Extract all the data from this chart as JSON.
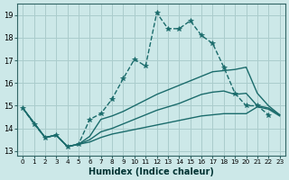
{
  "xlabel": "Humidex (Indice chaleur)",
  "bg_color": "#cce8e8",
  "grid_color": "#aacccc",
  "line_color": "#1a6b6b",
  "xlim": [
    -0.5,
    23.5
  ],
  "ylim": [
    12.8,
    19.5
  ],
  "xticks": [
    0,
    1,
    2,
    3,
    4,
    5,
    6,
    7,
    8,
    9,
    10,
    11,
    12,
    13,
    14,
    15,
    16,
    17,
    18,
    19,
    20,
    21,
    22,
    23
  ],
  "yticks": [
    13,
    14,
    15,
    16,
    17,
    18,
    19
  ],
  "series": [
    {
      "x": [
        0,
        1,
        2,
        3,
        4,
        5,
        6,
        7,
        8,
        9,
        10,
        11,
        12,
        13,
        14,
        15,
        16,
        17,
        18,
        19,
        20,
        21,
        22
      ],
      "y": [
        14.9,
        14.2,
        13.6,
        13.7,
        13.2,
        13.3,
        14.4,
        14.65,
        15.3,
        16.2,
        17.05,
        16.75,
        19.1,
        18.4,
        18.4,
        18.75,
        18.1,
        17.75,
        16.7,
        15.55,
        15.0,
        15.0,
        14.6
      ],
      "marker": "*",
      "markersize": 4,
      "ls": "--",
      "lw": 1.0
    },
    {
      "x": [
        0,
        2,
        3,
        4,
        5,
        6,
        7,
        8,
        9,
        10,
        11,
        12,
        13,
        14,
        15,
        16,
        17,
        18,
        19,
        20,
        21,
        22,
        23
      ],
      "y": [
        14.9,
        13.6,
        13.7,
        13.2,
        13.3,
        13.65,
        14.4,
        14.55,
        14.75,
        15.0,
        15.25,
        15.5,
        15.7,
        15.9,
        16.1,
        16.3,
        16.5,
        16.55,
        16.6,
        16.7,
        15.55,
        15.0,
        14.6
      ],
      "marker": null,
      "markersize": 0,
      "ls": "-",
      "lw": 1.0
    },
    {
      "x": [
        0,
        2,
        3,
        4,
        5,
        6,
        7,
        8,
        9,
        10,
        11,
        12,
        13,
        14,
        15,
        16,
        17,
        18,
        19,
        20,
        21,
        22,
        23
      ],
      "y": [
        14.9,
        13.6,
        13.7,
        13.2,
        13.3,
        13.5,
        13.85,
        14.0,
        14.2,
        14.4,
        14.6,
        14.8,
        14.95,
        15.1,
        15.3,
        15.5,
        15.6,
        15.65,
        15.5,
        15.55,
        15.0,
        14.9,
        14.6
      ],
      "marker": null,
      "markersize": 0,
      "ls": "-",
      "lw": 1.0
    },
    {
      "x": [
        0,
        2,
        3,
        4,
        5,
        6,
        7,
        8,
        9,
        10,
        11,
        12,
        13,
        14,
        15,
        16,
        17,
        18,
        19,
        20,
        21,
        22,
        23
      ],
      "y": [
        14.9,
        13.6,
        13.7,
        13.2,
        13.3,
        13.4,
        13.6,
        13.75,
        13.85,
        13.95,
        14.05,
        14.15,
        14.25,
        14.35,
        14.45,
        14.55,
        14.6,
        14.65,
        14.65,
        14.65,
        14.95,
        14.85,
        14.55
      ],
      "marker": null,
      "markersize": 0,
      "ls": "-",
      "lw": 1.0
    }
  ]
}
